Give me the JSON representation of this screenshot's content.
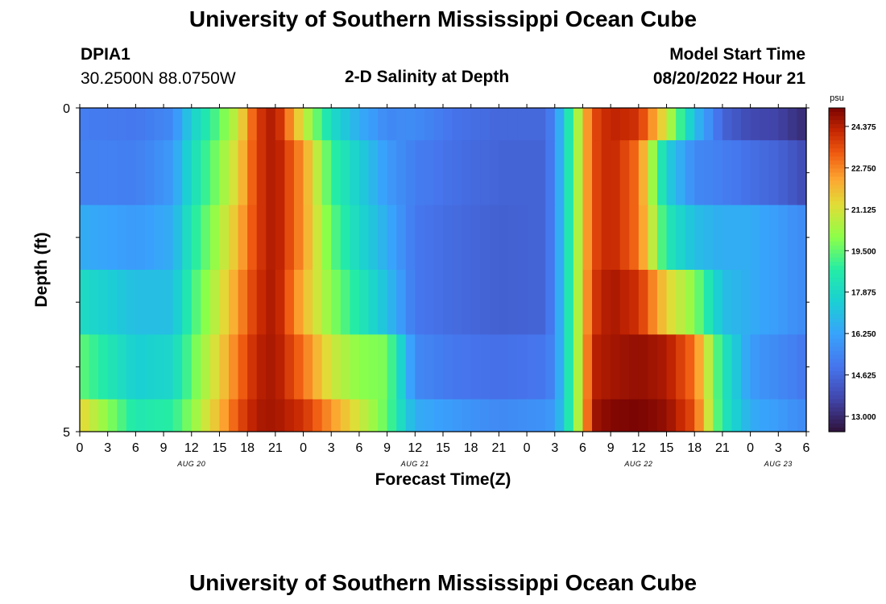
{
  "page": {
    "title_top": "University of Southern Mississippi Ocean Cube",
    "title_bottom": "University of Southern Mississippi Ocean Cube",
    "station": "DPIA1",
    "coords": "30.2500N  88.0750W",
    "plot_title": "2-D Salinity at Depth",
    "model_start_label": "Model Start Time",
    "model_start_value": "08/20/2022 Hour 21"
  },
  "chart_data": {
    "type": "heatmap",
    "title": "2-D Salinity at Depth",
    "xlabel": "Forecast Time(Z)",
    "ylabel": "Depth (ft)",
    "y_ticks": [
      "0",
      "5"
    ],
    "y_range": [
      0,
      5
    ],
    "x_ticks": [
      "0",
      "3",
      "6",
      "9",
      "12",
      "15",
      "18",
      "21",
      "0",
      "3",
      "6",
      "9",
      "12",
      "15",
      "18",
      "21",
      "0",
      "3",
      "6",
      "9",
      "12",
      "15",
      "18",
      "21",
      "0",
      "3",
      "6"
    ],
    "x_range_hours": [
      0,
      78
    ],
    "day_labels": [
      {
        "label": "AUG 20",
        "hour": 12
      },
      {
        "label": "AUG 21",
        "hour": 36
      },
      {
        "label": "AUG 22",
        "hour": 60
      },
      {
        "label": "AUG 23",
        "hour": 75
      }
    ],
    "colorbar": {
      "unit": "psu",
      "min": 12.4,
      "max": 25.1,
      "ticks": [
        "24.375",
        "22.750",
        "21.125",
        "19.500",
        "17.875",
        "16.250",
        "14.625",
        "13.000"
      ],
      "tick_values": [
        24.375,
        22.75,
        21.125,
        19.5,
        17.875,
        16.25,
        14.625,
        13.0
      ]
    },
    "depth_bands": [
      0,
      1,
      2,
      3,
      4,
      5
    ],
    "keyframes_hours": [
      0,
      6,
      10,
      12,
      15,
      17,
      19,
      21,
      24,
      27,
      30,
      33,
      36,
      40,
      45,
      50,
      51,
      52,
      53,
      54,
      55,
      57,
      60,
      63,
      66,
      69,
      72,
      75,
      78
    ],
    "layers": [
      {
        "depth": "0.0-0.5",
        "values": [
          15.2,
          15.0,
          15.5,
          17.5,
          19.5,
          21.0,
          23.8,
          24.6,
          21.0,
          18.0,
          16.5,
          15.5,
          15.6,
          14.9,
          14.6,
          14.6,
          15.5,
          17.5,
          19.5,
          21.5,
          23.5,
          24.3,
          24.0,
          21.0,
          17.0,
          14.5,
          13.8,
          13.6,
          13.0
        ]
      },
      {
        "depth": "0.5-1.5",
        "values": [
          15.3,
          15.2,
          16.0,
          18.0,
          20.0,
          21.5,
          23.8,
          24.6,
          22.5,
          19.0,
          17.5,
          16.0,
          15.2,
          14.8,
          14.5,
          14.5,
          15.5,
          17.5,
          19.5,
          21.5,
          23.5,
          24.3,
          23.0,
          17.5,
          15.5,
          15.2,
          14.8,
          14.5,
          13.8
        ]
      },
      {
        "depth": "1.5-2.5",
        "values": [
          16.5,
          16.0,
          16.5,
          18.5,
          20.5,
          22.0,
          23.8,
          24.6,
          22.5,
          19.5,
          17.8,
          16.5,
          15.0,
          14.7,
          14.4,
          14.5,
          15.5,
          17.5,
          19.5,
          21.5,
          23.5,
          24.3,
          23.0,
          18.5,
          17.0,
          16.5,
          16.5,
          16.0,
          15.5
        ]
      },
      {
        "depth": "2.5-3.5",
        "values": [
          18.0,
          17.0,
          17.0,
          19.0,
          21.0,
          22.5,
          24.0,
          24.6,
          22.0,
          20.0,
          18.5,
          17.0,
          15.0,
          14.7,
          14.4,
          14.5,
          15.5,
          17.5,
          19.5,
          21.5,
          23.8,
          24.6,
          24.0,
          21.5,
          20.0,
          17.0,
          16.5,
          16.0,
          15.5
        ]
      },
      {
        "depth": "3.5-4.5",
        "values": [
          19.5,
          17.5,
          17.8,
          19.5,
          21.5,
          23.0,
          24.3,
          24.6,
          23.0,
          21.0,
          20.0,
          19.8,
          15.5,
          15.0,
          14.8,
          15.0,
          15.5,
          17.5,
          19.5,
          21.5,
          24.3,
          24.6,
          24.8,
          24.5,
          23.0,
          18.5,
          16.0,
          15.5,
          15.0
        ]
      },
      {
        "depth": "4.5-5.0",
        "values": [
          21.5,
          18.5,
          18.8,
          20.0,
          22.0,
          23.5,
          24.5,
          24.6,
          24.0,
          22.5,
          21.0,
          19.5,
          16.5,
          16.0,
          15.5,
          15.8,
          16.0,
          17.5,
          19.5,
          21.5,
          24.6,
          25.0,
          25.1,
          24.8,
          23.5,
          18.5,
          16.5,
          16.0,
          15.5
        ]
      }
    ]
  }
}
